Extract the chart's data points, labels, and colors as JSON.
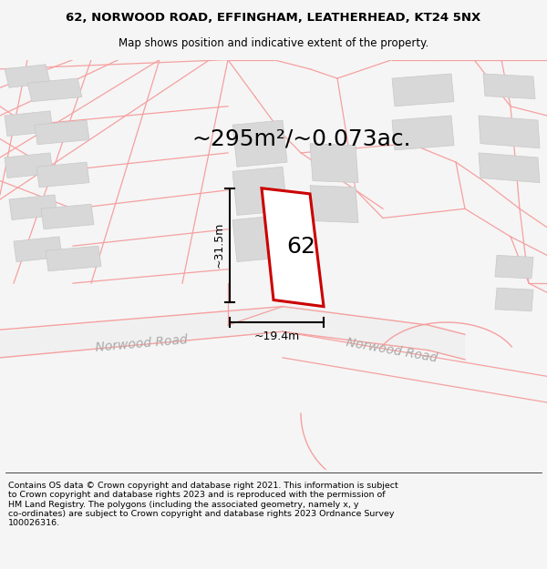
{
  "title_line1": "62, NORWOOD ROAD, EFFINGHAM, LEATHERHEAD, KT24 5NX",
  "title_line2": "Map shows position and indicative extent of the property.",
  "area_text": "~295m²/~0.073ac.",
  "label_62": "62",
  "dim_height": "~31.5m",
  "dim_width": "~19.4m",
  "road_label1": "Norwood Road",
  "road_label2": "Norwood Road",
  "footer_text": "Contains OS data © Crown copyright and database right 2021. This information is subject\nto Crown copyright and database rights 2023 and is reproduced with the permission of\nHM Land Registry. The polygons (including the associated geometry, namely x, y\nco-ordinates) are subject to Crown copyright and database rights 2023 Ordnance Survey\n100026316.",
  "bg_color": "#f5f5f5",
  "map_bg": "#ffffff",
  "plot_color": "#cc0000",
  "road_color": "#f5a0a0",
  "building_color": "#d8d8d8",
  "building_edge": "#c0c0c0",
  "road_label_color": "#aaaaaa",
  "dim_color": "#222222",
  "title_fontsize": 9.5,
  "subtitle_fontsize": 8.5,
  "area_fontsize": 18,
  "label_fontsize": 18,
  "road_label_fontsize": 10,
  "footer_fontsize": 6.8
}
